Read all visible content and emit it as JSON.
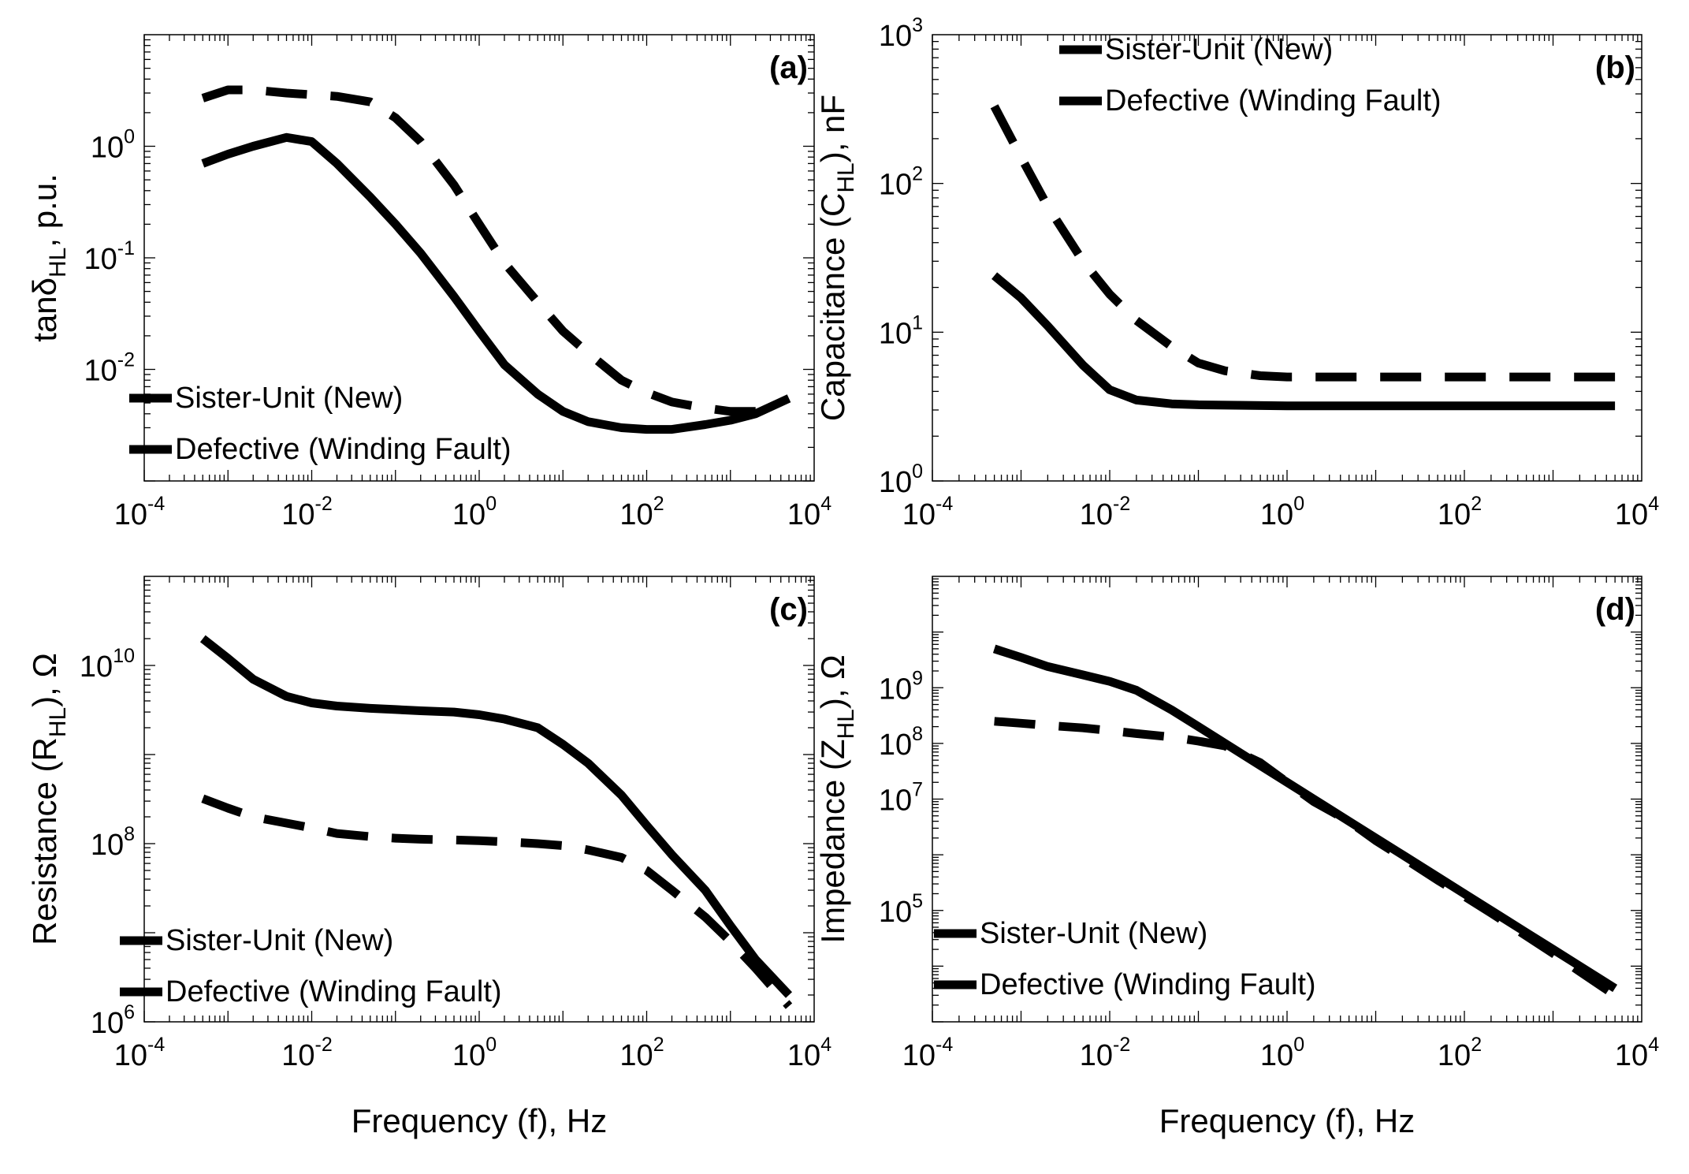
{
  "figure": {
    "caption": ""
  },
  "chart_data": [
    {
      "id": "a",
      "type": "line",
      "panel_label": "(a)",
      "x_scale": "log",
      "y_scale": "log",
      "xlim": [
        0.0001,
        10000
      ],
      "ylim": [
        0.001,
        10
      ],
      "x_ticks": [
        {
          "base": "10",
          "exp": "-4",
          "v": 0.0001
        },
        {
          "base": "10",
          "exp": "-2",
          "v": 0.01
        },
        {
          "base": "10",
          "exp": "0",
          "v": 1
        },
        {
          "base": "10",
          "exp": "2",
          "v": 100
        },
        {
          "base": "10",
          "exp": "4",
          "v": 10000
        }
      ],
      "y_ticks": [
        {
          "base": "10",
          "exp": "-2",
          "v": 0.01
        },
        {
          "base": "10",
          "exp": "-1",
          "v": 0.1
        },
        {
          "base": "10",
          "exp": "0",
          "v": 1
        }
      ],
      "x_label": null,
      "y_label": {
        "prefix": "tanδ",
        "sub": "HL",
        "suffix": ", p.u."
      },
      "legend_position": "bottom-left",
      "series": [
        {
          "name": "Sister-Unit (New)",
          "style": "solid",
          "x": [
            0.0005,
            0.001,
            0.002,
            0.005,
            0.01,
            0.02,
            0.05,
            0.1,
            0.2,
            0.5,
            1,
            2,
            5,
            10,
            20,
            50,
            100,
            200,
            500,
            1000,
            2000,
            5000
          ],
          "y": [
            0.7,
            0.85,
            1.0,
            1.2,
            1.1,
            0.7,
            0.35,
            0.2,
            0.11,
            0.045,
            0.022,
            0.011,
            0.006,
            0.0042,
            0.0034,
            0.003,
            0.0029,
            0.0029,
            0.0032,
            0.0035,
            0.004,
            0.0055
          ]
        },
        {
          "name": "Defective (Winding Fault)",
          "style": "dashed",
          "x": [
            0.0005,
            0.001,
            0.002,
            0.005,
            0.01,
            0.02,
            0.05,
            0.1,
            0.2,
            0.5,
            1,
            2,
            5,
            10,
            20,
            50,
            100,
            200,
            500,
            1000,
            2000
          ],
          "y": [
            2.7,
            3.2,
            3.2,
            3.0,
            2.9,
            2.8,
            2.5,
            1.8,
            1.1,
            0.45,
            0.2,
            0.09,
            0.04,
            0.022,
            0.014,
            0.008,
            0.0062,
            0.0051,
            0.0045,
            0.0042,
            0.0042
          ]
        }
      ]
    },
    {
      "id": "b",
      "type": "line",
      "panel_label": "(b)",
      "x_scale": "log",
      "y_scale": "log",
      "xlim": [
        0.0001,
        10000
      ],
      "ylim": [
        1,
        1000
      ],
      "x_ticks": [
        {
          "base": "10",
          "exp": "-4",
          "v": 0.0001
        },
        {
          "base": "10",
          "exp": "-2",
          "v": 0.01
        },
        {
          "base": "10",
          "exp": "0",
          "v": 1
        },
        {
          "base": "10",
          "exp": "2",
          "v": 100
        },
        {
          "base": "10",
          "exp": "4",
          "v": 10000
        }
      ],
      "y_ticks": [
        {
          "base": "10",
          "exp": "0",
          "v": 1
        },
        {
          "base": "10",
          "exp": "1",
          "v": 10
        },
        {
          "base": "10",
          "exp": "2",
          "v": 100
        },
        {
          "base": "10",
          "exp": "3",
          "v": 1000
        }
      ],
      "x_label": null,
      "y_label": {
        "prefix": "Capacitance (C",
        "sub": "HL",
        "suffix": "), nF"
      },
      "legend_position": "top-left",
      "series": [
        {
          "name": "Sister-Unit (New)",
          "style": "solid",
          "x": [
            0.0005,
            0.001,
            0.002,
            0.005,
            0.01,
            0.02,
            0.05,
            0.1,
            1,
            10,
            100,
            1000,
            5000
          ],
          "y": [
            24,
            17,
            11,
            6,
            4.1,
            3.5,
            3.3,
            3.25,
            3.2,
            3.2,
            3.2,
            3.2,
            3.2
          ]
        },
        {
          "name": "Defective (Winding Fault)",
          "style": "dashed",
          "x": [
            0.0005,
            0.001,
            0.002,
            0.005,
            0.01,
            0.02,
            0.05,
            0.1,
            0.2,
            0.5,
            1,
            10,
            100,
            1000,
            5000
          ],
          "y": [
            330,
            150,
            70,
            30,
            18,
            12,
            8,
            6.2,
            5.5,
            5.1,
            5,
            5,
            5,
            5,
            5
          ]
        }
      ]
    },
    {
      "id": "c",
      "type": "line",
      "panel_label": "(c)",
      "x_scale": "log",
      "y_scale": "log",
      "xlim": [
        0.0001,
        10000
      ],
      "ylim": [
        1000000,
        100000000000
      ],
      "x_ticks": [
        {
          "base": "10",
          "exp": "-4",
          "v": 0.0001
        },
        {
          "base": "10",
          "exp": "-2",
          "v": 0.01
        },
        {
          "base": "10",
          "exp": "0",
          "v": 1
        },
        {
          "base": "10",
          "exp": "2",
          "v": 100
        },
        {
          "base": "10",
          "exp": "4",
          "v": 10000
        }
      ],
      "y_ticks": [
        {
          "base": "10",
          "exp": "6",
          "v": 1000000
        },
        {
          "base": "10",
          "exp": "8",
          "v": 100000000
        },
        {
          "base": "10",
          "exp": "10",
          "v": 10000000000
        }
      ],
      "x_label": "Frequency (f), Hz",
      "y_label": {
        "prefix": "Resistance (R",
        "sub": "HL",
        "suffix": "), Ω"
      },
      "legend_position": "bottom-left",
      "series": [
        {
          "name": "Sister-Unit (New)",
          "style": "solid",
          "x": [
            0.0005,
            0.001,
            0.002,
            0.005,
            0.01,
            0.02,
            0.05,
            0.1,
            0.2,
            0.5,
            1,
            2,
            5,
            10,
            20,
            50,
            100,
            200,
            500,
            1000,
            2000,
            5000
          ],
          "y": [
            20000000000,
            12000000000,
            7000000000,
            4500000000,
            3800000000,
            3500000000,
            3300000000,
            3200000000,
            3100000000,
            3000000000,
            2800000000,
            2500000000,
            2000000000,
            1300000000,
            800000000,
            350000000,
            160000000,
            75000000,
            30000000,
            12000000,
            5000000,
            2000000
          ]
        },
        {
          "name": "Defective (Winding Fault)",
          "style": "dashed",
          "x": [
            0.0005,
            0.001,
            0.002,
            0.005,
            0.01,
            0.02,
            0.05,
            0.1,
            0.2,
            0.5,
            1,
            2,
            5,
            10,
            20,
            50,
            100,
            200,
            500,
            1000,
            2000,
            5000
          ],
          "y": [
            320000000,
            250000000,
            200000000,
            170000000,
            150000000,
            130000000,
            120000000,
            115000000,
            112000000,
            110000000,
            108000000,
            105000000,
            100000000,
            95000000,
            85000000,
            70000000,
            50000000,
            30000000,
            15000000,
            8000000,
            4000000,
            1500000
          ]
        }
      ]
    },
    {
      "id": "d",
      "type": "line",
      "panel_label": "(d)",
      "x_scale": "log",
      "y_scale": "log",
      "xlim": [
        0.0001,
        10000
      ],
      "ylim": [
        1000,
        100000000000
      ],
      "x_ticks": [
        {
          "base": "10",
          "exp": "-4",
          "v": 0.0001
        },
        {
          "base": "10",
          "exp": "-2",
          "v": 0.01
        },
        {
          "base": "10",
          "exp": "0",
          "v": 1
        },
        {
          "base": "10",
          "exp": "2",
          "v": 100
        },
        {
          "base": "10",
          "exp": "4",
          "v": 10000
        }
      ],
      "y_ticks": [
        {
          "base": "10",
          "exp": "5",
          "v": 100000
        },
        {
          "base": "10",
          "exp": "7",
          "v": 10000000
        },
        {
          "base": "10",
          "exp": "8",
          "v": 100000000
        },
        {
          "base": "10",
          "exp": "9",
          "v": 1000000000
        }
      ],
      "x_label": "Frequency (f), Hz",
      "y_label": {
        "prefix": "Impedance (Z",
        "sub": "HL",
        "suffix": "), Ω"
      },
      "legend_position": "bottom-left",
      "series": [
        {
          "name": "Sister-Unit (New)",
          "style": "solid",
          "x": [
            0.0005,
            0.001,
            0.002,
            0.005,
            0.01,
            0.02,
            0.05,
            0.1,
            0.2,
            0.5,
            1,
            2,
            5,
            10,
            20,
            50,
            100,
            200,
            500,
            1000,
            2000,
            5000
          ],
          "y": [
            5000000000,
            3500000000,
            2400000000,
            1700000000,
            1300000000,
            900000000,
            400000000,
            200000000,
            100000000,
            40000000,
            20000000,
            10000000,
            4000000,
            2000000,
            1000000,
            400000,
            200000,
            100000,
            40000,
            20000,
            10000,
            4000
          ]
        },
        {
          "name": "Defective (Winding Fault)",
          "style": "dashed",
          "x": [
            0.0005,
            0.001,
            0.002,
            0.005,
            0.01,
            0.02,
            0.05,
            0.1,
            0.2,
            0.5,
            1,
            2,
            5,
            10,
            20,
            50,
            100,
            200,
            500,
            1000,
            2000,
            5000
          ],
          "y": [
            250000000,
            230000000,
            210000000,
            190000000,
            170000000,
            150000000,
            130000000,
            110000000,
            90000000,
            45000000,
            20000000,
            9000000,
            4000000,
            1800000,
            900000,
            350000,
            180000,
            90000,
            35000,
            17000,
            8000,
            3000
          ]
        }
      ]
    }
  ]
}
